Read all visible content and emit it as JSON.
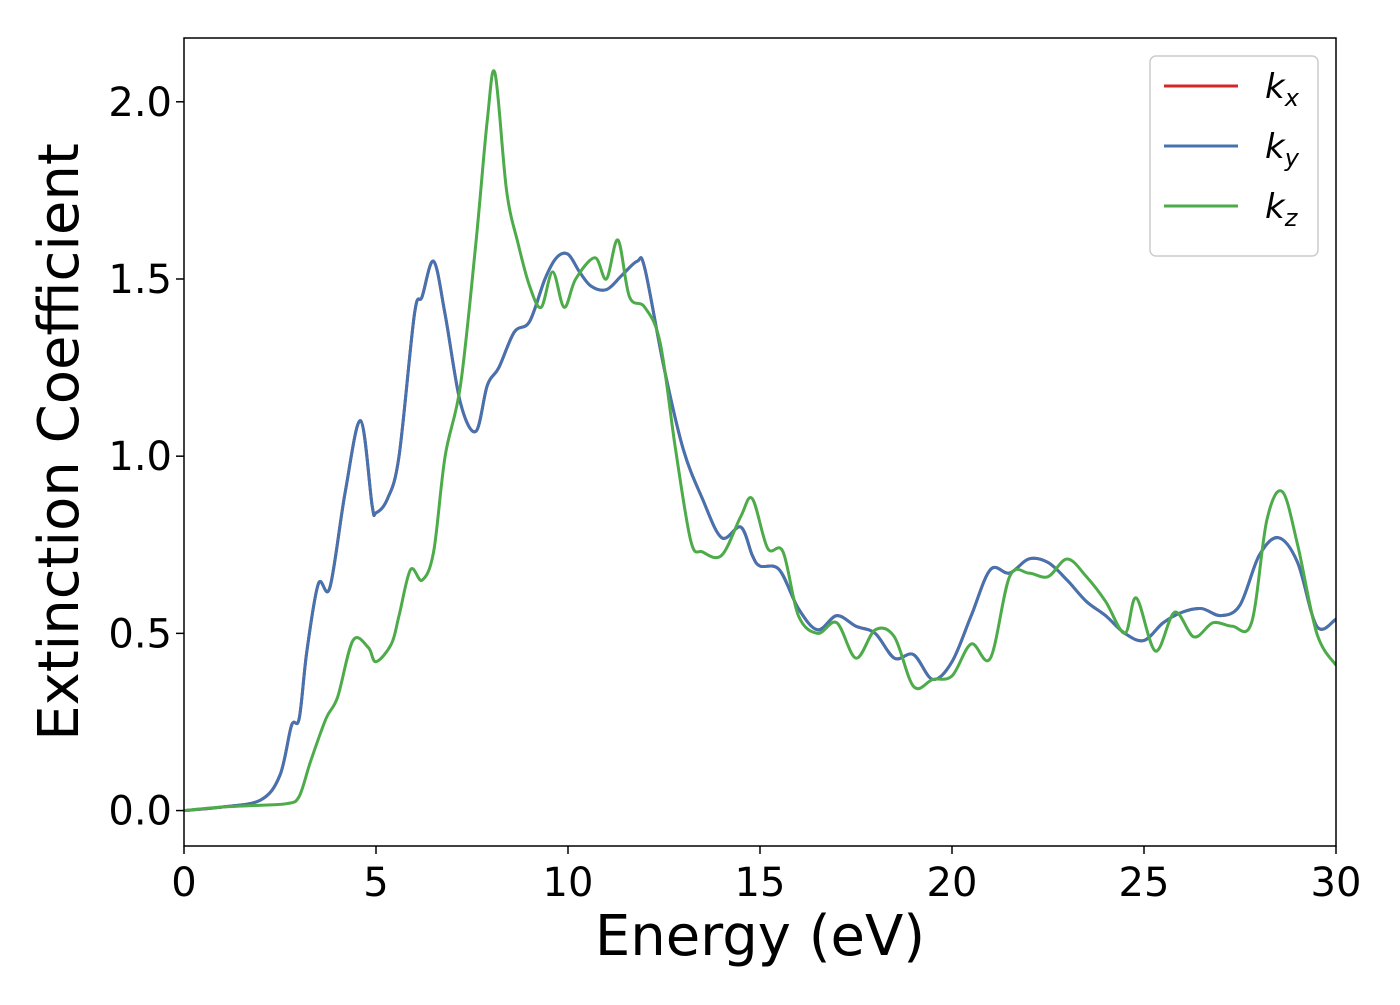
{
  "chart_data": {
    "type": "line",
    "title": "",
    "xlabel": "Energy (eV)",
    "ylabel": "Extinction Coefficient",
    "xlim": [
      0,
      30
    ],
    "ylim": [
      -0.1,
      2.18
    ],
    "xticks": [
      0,
      5,
      10,
      15,
      20,
      25,
      30
    ],
    "xtick_labels": [
      "0",
      "5",
      "10",
      "15",
      "20",
      "25",
      "30"
    ],
    "yticks": [
      0.0,
      0.5,
      1.0,
      1.5,
      2.0
    ],
    "ytick_labels": [
      "0.0",
      "0.5",
      "1.0",
      "1.5",
      "2.0"
    ],
    "grid": false,
    "legend_position": "top-right",
    "series": [
      {
        "name": "k_x",
        "label_base": "k",
        "label_sub": "x",
        "color": "#d62728",
        "x": [
          0,
          1,
          2,
          2.5,
          2.8,
          3.0,
          3.2,
          3.5,
          3.8,
          4.2,
          4.6,
          4.9,
          5.0,
          5.3,
          5.6,
          6.0,
          6.2,
          6.5,
          6.8,
          7.2,
          7.6,
          7.9,
          8.2,
          8.6,
          9.0,
          9.4,
          9.7,
          10.0,
          10.3,
          10.6,
          11.0,
          11.4,
          11.8,
          12.0,
          12.5,
          13.0,
          13.5,
          14.0,
          14.5,
          14.8,
          15.0,
          15.5,
          16.0,
          16.5,
          17.0,
          17.5,
          18.0,
          18.5,
          19.0,
          19.5,
          20.0,
          20.5,
          21.0,
          21.5,
          22.0,
          22.5,
          23.0,
          23.5,
          24.0,
          24.5,
          25.0,
          25.5,
          26.0,
          26.5,
          27.0,
          27.5,
          28.0,
          28.5,
          29.0,
          29.5,
          30.0
        ],
        "y": [
          0.0,
          0.01,
          0.03,
          0.1,
          0.24,
          0.26,
          0.45,
          0.64,
          0.63,
          0.9,
          1.1,
          0.86,
          0.84,
          0.88,
          1.0,
          1.4,
          1.45,
          1.55,
          1.4,
          1.15,
          1.07,
          1.2,
          1.25,
          1.35,
          1.38,
          1.5,
          1.56,
          1.57,
          1.52,
          1.48,
          1.47,
          1.51,
          1.55,
          1.53,
          1.25,
          1.02,
          0.88,
          0.77,
          0.8,
          0.72,
          0.69,
          0.68,
          0.57,
          0.51,
          0.55,
          0.52,
          0.5,
          0.43,
          0.44,
          0.37,
          0.42,
          0.55,
          0.68,
          0.67,
          0.71,
          0.7,
          0.65,
          0.59,
          0.55,
          0.5,
          0.48,
          0.53,
          0.56,
          0.57,
          0.55,
          0.58,
          0.72,
          0.77,
          0.7,
          0.52,
          0.54
        ]
      },
      {
        "name": "k_y",
        "label_base": "k",
        "label_sub": "y",
        "color": "#4573b0",
        "x": [
          0,
          1,
          2,
          2.5,
          2.8,
          3.0,
          3.2,
          3.5,
          3.8,
          4.2,
          4.6,
          4.9,
          5.0,
          5.3,
          5.6,
          6.0,
          6.2,
          6.5,
          6.8,
          7.2,
          7.6,
          7.9,
          8.2,
          8.6,
          9.0,
          9.4,
          9.7,
          10.0,
          10.3,
          10.6,
          11.0,
          11.4,
          11.8,
          12.0,
          12.5,
          13.0,
          13.5,
          14.0,
          14.5,
          14.8,
          15.0,
          15.5,
          16.0,
          16.5,
          17.0,
          17.5,
          18.0,
          18.5,
          19.0,
          19.5,
          20.0,
          20.5,
          21.0,
          21.5,
          22.0,
          22.5,
          23.0,
          23.5,
          24.0,
          24.5,
          25.0,
          25.5,
          26.0,
          26.5,
          27.0,
          27.5,
          28.0,
          28.5,
          29.0,
          29.5,
          30.0
        ],
        "y": [
          0.0,
          0.01,
          0.03,
          0.1,
          0.24,
          0.26,
          0.45,
          0.64,
          0.63,
          0.9,
          1.1,
          0.86,
          0.84,
          0.88,
          1.0,
          1.4,
          1.45,
          1.55,
          1.4,
          1.15,
          1.07,
          1.2,
          1.25,
          1.35,
          1.38,
          1.5,
          1.56,
          1.57,
          1.52,
          1.48,
          1.47,
          1.51,
          1.55,
          1.53,
          1.25,
          1.02,
          0.88,
          0.77,
          0.8,
          0.72,
          0.69,
          0.68,
          0.57,
          0.51,
          0.55,
          0.52,
          0.5,
          0.43,
          0.44,
          0.37,
          0.42,
          0.55,
          0.68,
          0.67,
          0.71,
          0.7,
          0.65,
          0.59,
          0.55,
          0.5,
          0.48,
          0.53,
          0.56,
          0.57,
          0.55,
          0.58,
          0.72,
          0.77,
          0.7,
          0.52,
          0.54
        ]
      },
      {
        "name": "k_z",
        "label_base": "k",
        "label_sub": "z",
        "color": "#4dab4a",
        "x": [
          0,
          1,
          2,
          2.7,
          3.0,
          3.3,
          3.7,
          4.0,
          4.4,
          4.8,
          5.0,
          5.4,
          5.6,
          5.9,
          6.2,
          6.5,
          6.8,
          7.2,
          7.6,
          7.9,
          8.1,
          8.4,
          8.7,
          9.0,
          9.3,
          9.6,
          9.9,
          10.2,
          10.7,
          11.0,
          11.3,
          11.6,
          12.0,
          12.4,
          12.8,
          13.2,
          13.5,
          14.0,
          14.5,
          14.8,
          15.2,
          15.6,
          16.0,
          16.5,
          17.0,
          17.5,
          18.0,
          18.5,
          19.0,
          19.5,
          20.0,
          20.5,
          21.0,
          21.5,
          22.0,
          22.5,
          23.0,
          23.5,
          24.0,
          24.5,
          24.8,
          25.3,
          25.8,
          26.3,
          26.8,
          27.3,
          27.8,
          28.2,
          28.6,
          29.0,
          29.5,
          30.0
        ],
        "y": [
          0.0,
          0.01,
          0.015,
          0.02,
          0.04,
          0.14,
          0.26,
          0.32,
          0.48,
          0.46,
          0.42,
          0.47,
          0.55,
          0.68,
          0.65,
          0.73,
          1.0,
          1.2,
          1.6,
          1.95,
          2.08,
          1.75,
          1.6,
          1.48,
          1.42,
          1.52,
          1.42,
          1.5,
          1.56,
          1.5,
          1.61,
          1.45,
          1.42,
          1.32,
          1.02,
          0.76,
          0.73,
          0.72,
          0.83,
          0.88,
          0.74,
          0.73,
          0.55,
          0.5,
          0.53,
          0.43,
          0.51,
          0.49,
          0.35,
          0.37,
          0.38,
          0.47,
          0.43,
          0.66,
          0.67,
          0.66,
          0.71,
          0.66,
          0.59,
          0.5,
          0.6,
          0.45,
          0.56,
          0.49,
          0.53,
          0.52,
          0.53,
          0.82,
          0.9,
          0.75,
          0.5,
          0.41
        ]
      }
    ]
  }
}
